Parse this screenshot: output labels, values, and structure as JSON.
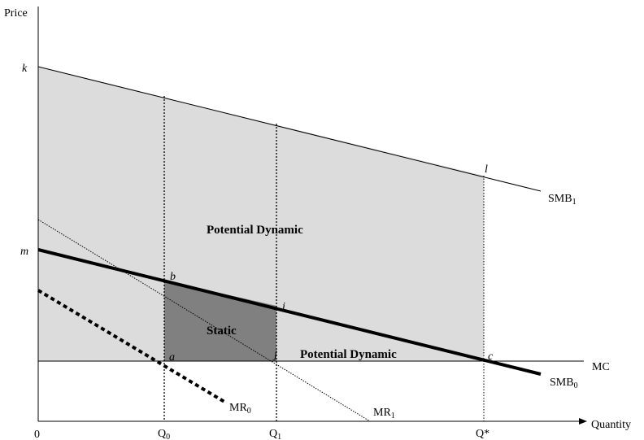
{
  "axes": {
    "y_label": "Price",
    "x_label": "Quantity",
    "origin": "0"
  },
  "y_ticks": {
    "k": "k",
    "m": "m"
  },
  "x_ticks": {
    "q0": "Q",
    "q0_sub": "0",
    "q1": "Q",
    "q1_sub": "1",
    "qstar": "Q*"
  },
  "curves": {
    "smb1": "SMB",
    "smb1_sub": "1",
    "smb0": "SMB",
    "smb0_sub": "0",
    "mc": "MC",
    "mr0": "MR",
    "mr0_sub": "0",
    "mr1": "MR",
    "mr1_sub": "1"
  },
  "points": {
    "b": "b",
    "a": "a",
    "i": "i",
    "j": "j",
    "c": "c",
    "l": "l"
  },
  "regions": {
    "potential_dynamic_upper": "Potential Dynamic",
    "static": "Static",
    "potential_dynamic_lower": "Potential Dynamic"
  },
  "colors": {
    "light_shade": "#dcdcdc",
    "dark_shade": "#808080",
    "line": "#000000"
  }
}
